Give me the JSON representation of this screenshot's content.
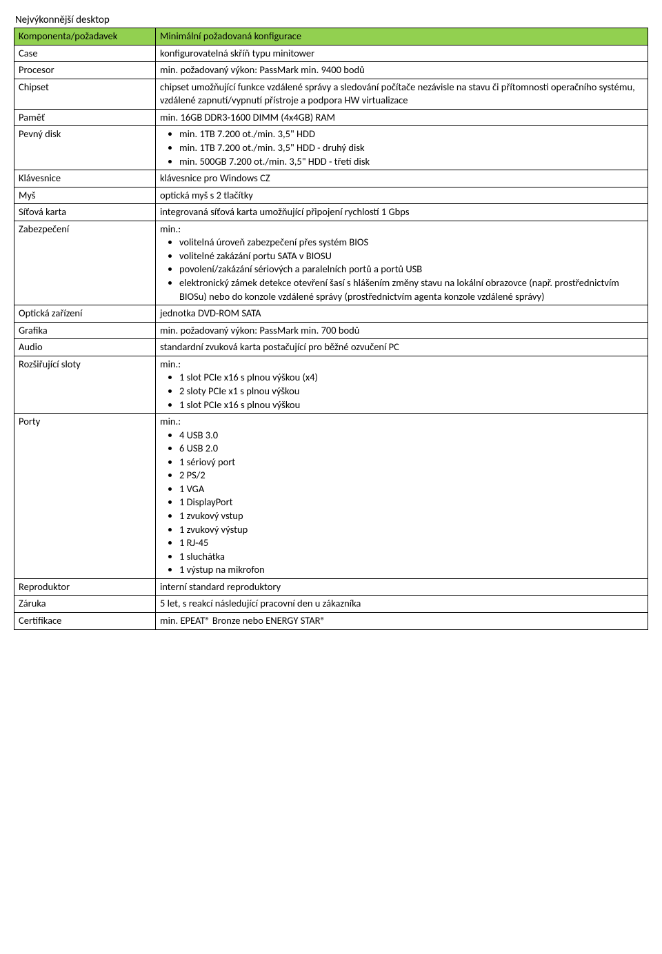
{
  "title": "Nejvýkonnější desktop",
  "header": {
    "left": "Komponenta/požadavek",
    "right": "Minimální požadovaná konfigurace"
  },
  "rows": {
    "case": {
      "label": "Case",
      "value": "konfigurovatelná skříň typu minitower"
    },
    "procesor": {
      "label": "Procesor",
      "value": "min. požadovaný výkon: PassMark min. 9400 bodů"
    },
    "chipset": {
      "label": "Chipset",
      "value": "chipset umožňující funkce vzdálené správy a sledování počítače nezávisle na stavu či přítomnosti operačního systému, vzdálené zapnutí/vypnutí přístroje a podpora HW virtualizace"
    },
    "pamet": {
      "label": "Paměť",
      "value": "min. 16GB DDR3-1600 DIMM (4x4GB) RAM"
    },
    "pevny_disk": {
      "label": "Pevný disk",
      "bullets": [
        "min. 1TB 7.200 ot./min. 3,5\" HDD",
        "min. 1TB 7.200 ot./min. 3,5\" HDD - druhý disk",
        "min. 500GB 7.200 ot./min. 3,5\" HDD - třetí disk"
      ]
    },
    "klavesnice": {
      "label": "Klávesnice",
      "value": "klávesnice pro Windows CZ"
    },
    "mys": {
      "label": "Myš",
      "value": "optická myš s 2 tlačítky"
    },
    "sit_karta": {
      "label": "Síťová karta",
      "value": "integrovaná síťová karta umožňující připojení rychlostí 1 Gbps"
    },
    "zabezpeceni": {
      "label": "Zabezpečení",
      "intro": "min.:",
      "bullets": [
        "volitelná úroveň zabezpečení přes systém BIOS",
        "volitelné zakázání portu SATA v BIOSU",
        "povolení/zakázání sériových a paralelních portů a portů USB",
        "elektronický zámek detekce otevření šasí s hlášením změny stavu na lokální obrazovce (např. prostřednictvím BIOSu) nebo do konzole vzdálené správy (prostřednictvím agenta konzole vzdálené správy)"
      ]
    },
    "opticka": {
      "label": "Optická zařízení",
      "value": "jednotka DVD-ROM SATA"
    },
    "grafika": {
      "label": "Grafika",
      "value": "min. požadovaný výkon: PassMark min. 700 bodů"
    },
    "audio": {
      "label": "Audio",
      "value": "standardní zvuková karta postačující pro běžné ozvučení PC"
    },
    "rozsir": {
      "label": "Rozšiřující sloty",
      "intro": "min.:",
      "bullets": [
        "1 slot PCIe x16 s plnou výškou (x4)",
        "2 sloty PCIe x1 s plnou výškou",
        "1 slot PCIe x16 s plnou výškou"
      ]
    },
    "porty": {
      "label": "Porty",
      "intro": "min.:",
      "bullets": [
        "4 USB 3.0",
        "6 USB 2.0",
        "1 sériový port",
        "2 PS/2",
        "1 VGA",
        "1 DisplayPort",
        "1 zvukový vstup",
        "1 zvukový výstup",
        "1 RJ-45",
        "1 sluchátka",
        "1 výstup na mikrofon"
      ]
    },
    "reproduktor": {
      "label": "Reproduktor",
      "value": "interní standard reproduktory"
    },
    "zaruka": {
      "label": "Záruka",
      "value": "5 let, s reakcí následující pracovní den u zákazníka"
    },
    "certifikace": {
      "label": "Certifikace",
      "value": "min. EPEAT® Bronze nebo ENERGY STAR®"
    }
  }
}
